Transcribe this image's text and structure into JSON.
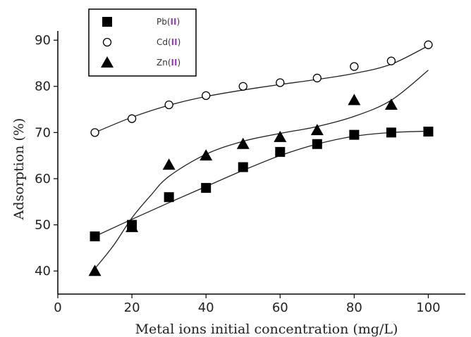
{
  "chart_data": {
    "type": "scatter",
    "xlabel": "Metal ions initial concentration (mg/L)",
    "ylabel": "Adsorption (%)",
    "xlim": [
      0,
      110
    ],
    "ylim": [
      35,
      92
    ],
    "xticks": [
      0,
      20,
      40,
      60,
      80,
      100
    ],
    "yticks": [
      40,
      50,
      60,
      70,
      80,
      90
    ],
    "grid": false,
    "legend_position": "top-left",
    "series": [
      {
        "name": "Pb(II)",
        "legend_base": "Pb(",
        "legend_roman": "II",
        "legend_close": ")",
        "marker": "square",
        "x": [
          10,
          20,
          30,
          40,
          50,
          60,
          70,
          80,
          90,
          100
        ],
        "y": [
          47.5,
          50,
          56,
          58,
          62.5,
          65.8,
          67.5,
          69.5,
          70,
          70.2
        ],
        "fit": [
          [
            10,
            47.5
          ],
          [
            20,
            51.2
          ],
          [
            30,
            54.8
          ],
          [
            40,
            58.3
          ],
          [
            50,
            61.8
          ],
          [
            60,
            65
          ],
          [
            70,
            67.5
          ],
          [
            80,
            69.2
          ],
          [
            90,
            70
          ],
          [
            100,
            70.3
          ]
        ]
      },
      {
        "name": "Cd(II)",
        "legend_base": "Cd(",
        "legend_roman": "II",
        "legend_close": ")",
        "marker": "circle",
        "x": [
          10,
          20,
          30,
          40,
          50,
          60,
          70,
          80,
          90,
          100
        ],
        "y": [
          70,
          73,
          76,
          78,
          80,
          80.8,
          81.8,
          84.3,
          85.5,
          89
        ],
        "fit": [
          [
            10,
            70
          ],
          [
            20,
            73.3
          ],
          [
            30,
            75.9
          ],
          [
            40,
            77.8
          ],
          [
            50,
            79.2
          ],
          [
            60,
            80.4
          ],
          [
            70,
            81.5
          ],
          [
            80,
            82.8
          ],
          [
            90,
            84.8
          ],
          [
            100,
            88.8
          ]
        ]
      },
      {
        "name": "Zn(II)",
        "legend_base": "Zn(",
        "legend_roman": "II",
        "legend_close": ")",
        "marker": "triangle",
        "x": [
          10,
          20,
          30,
          40,
          50,
          60,
          70,
          80,
          90
        ],
        "y": [
          40,
          49.5,
          63,
          65,
          67.5,
          69,
          70.5,
          77,
          76
        ],
        "fit": [
          [
            10,
            40.5
          ],
          [
            15,
            45.5
          ],
          [
            20,
            51.5
          ],
          [
            25,
            56.3
          ],
          [
            30,
            60.5
          ],
          [
            40,
            65.3
          ],
          [
            50,
            68.1
          ],
          [
            60,
            69.8
          ],
          [
            70,
            71.3
          ],
          [
            80,
            73.5
          ],
          [
            90,
            77
          ],
          [
            100,
            83.5
          ]
        ]
      }
    ]
  }
}
